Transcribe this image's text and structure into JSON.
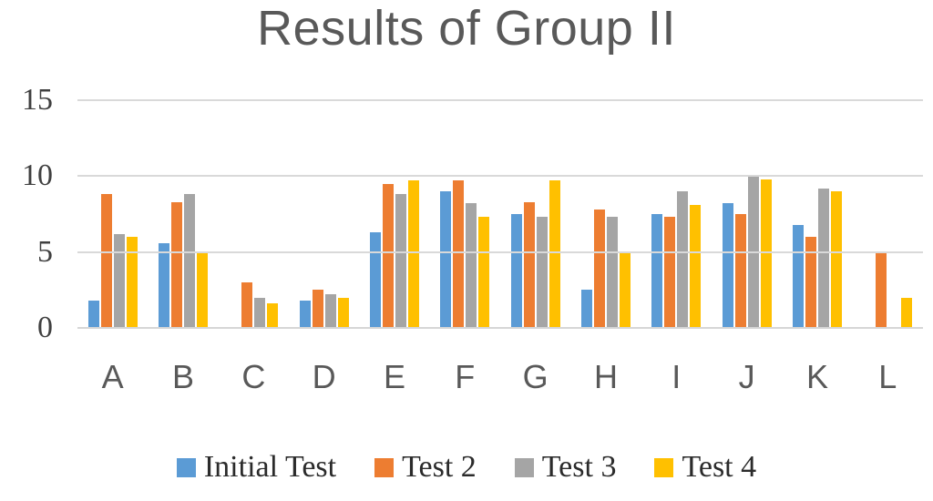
{
  "chart_data": {
    "type": "bar",
    "title": "Results of Group II",
    "xlabel": "",
    "ylabel": "",
    "categories": [
      "A",
      "B",
      "C",
      "D",
      "E",
      "F",
      "G",
      "H",
      "I",
      "J",
      "K",
      "L"
    ],
    "series": [
      {
        "name": "Initial Test",
        "color": "#5B9BD5",
        "values": [
          1.8,
          5.6,
          0,
          1.8,
          6.3,
          9.0,
          7.5,
          2.5,
          7.5,
          8.2,
          6.8,
          0
        ]
      },
      {
        "name": "Test 2",
        "color": "#ED7D31",
        "values": [
          8.8,
          8.3,
          3.0,
          2.5,
          9.5,
          9.7,
          8.3,
          7.8,
          7.3,
          7.5,
          6.0,
          5.0
        ]
      },
      {
        "name": "Test 3",
        "color": "#A5A5A5",
        "values": [
          6.2,
          8.8,
          2.0,
          2.2,
          8.8,
          8.2,
          7.3,
          7.3,
          9.0,
          10.1,
          9.2,
          0
        ]
      },
      {
        "name": "Test 4",
        "color": "#FFC000",
        "values": [
          6.0,
          5.0,
          1.6,
          2.0,
          9.7,
          7.3,
          9.7,
          5.0,
          8.1,
          9.8,
          9.0,
          2.0
        ]
      }
    ],
    "ylim": [
      0,
      15
    ],
    "yticks": [
      0,
      5,
      10,
      15
    ],
    "grid": true,
    "legend_position": "bottom"
  },
  "colors": {
    "title_text": "#595959",
    "ytick_text": "#404040",
    "xtick_text": "#595959",
    "gridline": "#d9d9d9",
    "background": "#ffffff"
  }
}
